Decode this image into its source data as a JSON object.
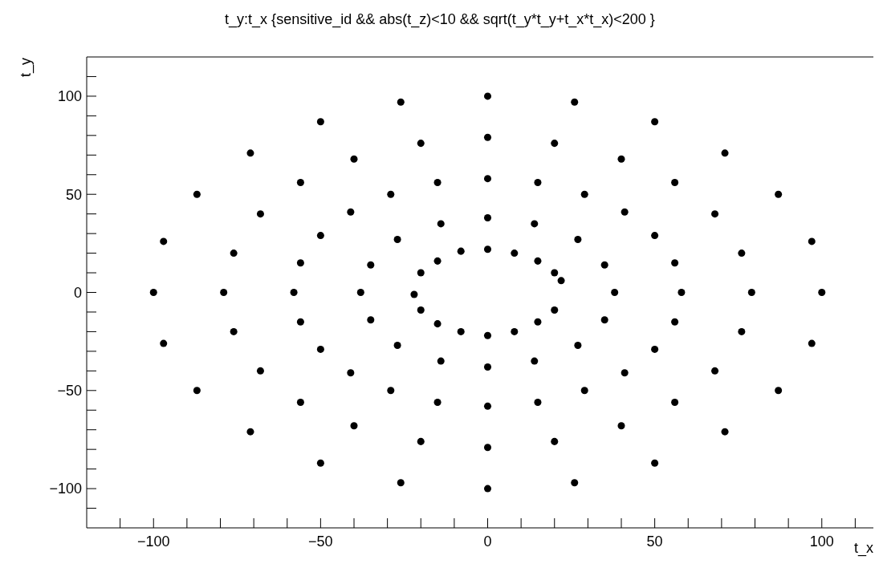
{
  "chart_data": {
    "type": "scatter",
    "title": "t_y:t_x {sensitive_id && abs(t_z)<10 && sqrt(t_y*t_y+t_x*t_x)<200 }",
    "xlabel": "t_x",
    "ylabel": "t_y",
    "xlim": [
      -120,
      120
    ],
    "ylim": [
      -120,
      120
    ],
    "xticks": [
      {
        "value": -110,
        "label": null
      },
      -100,
      {
        "value": -90,
        "label": null
      },
      {
        "value": -80,
        "label": null
      },
      {
        "value": -70,
        "label": null
      },
      {
        "value": -60,
        "label": null
      },
      -50,
      {
        "value": -40,
        "label": null
      },
      {
        "value": -30,
        "label": null
      },
      {
        "value": -20,
        "label": null
      },
      {
        "value": -10,
        "label": null
      },
      0,
      {
        "value": 10,
        "label": null
      },
      {
        "value": 20,
        "label": null
      },
      {
        "value": 30,
        "label": null
      },
      {
        "value": 40,
        "label": null
      },
      50,
      {
        "value": 60,
        "label": null
      },
      {
        "value": 70,
        "label": null
      },
      {
        "value": 80,
        "label": null
      },
      {
        "value": 90,
        "label": null
      },
      100,
      {
        "value": 110,
        "label": null
      }
    ],
    "yticks": [
      {
        "value": -110,
        "label": null
      },
      -100,
      {
        "value": -90,
        "label": null
      },
      {
        "value": -80,
        "label": null
      },
      {
        "value": -70,
        "label": null
      },
      {
        "value": -60,
        "label": null
      },
      -50,
      {
        "value": -40,
        "label": null
      },
      {
        "value": -30,
        "label": null
      },
      {
        "value": -20,
        "label": null
      },
      {
        "value": -10,
        "label": null
      },
      0,
      {
        "value": 10,
        "label": null
      },
      {
        "value": 20,
        "label": null
      },
      {
        "value": 30,
        "label": null
      },
      {
        "value": 40,
        "label": null
      },
      50,
      {
        "value": 60,
        "label": null
      },
      {
        "value": 70,
        "label": null
      },
      {
        "value": 80,
        "label": null
      },
      {
        "value": 90,
        "label": null
      },
      100,
      {
        "value": 110,
        "label": null
      }
    ],
    "marker": "circle",
    "legend": false,
    "grid": false,
    "series": [
      {
        "color": "#000000",
        "x": [
          22,
          20,
          15,
          8,
          0,
          -8,
          -15,
          -20,
          -22,
          -20,
          -15,
          -8,
          0,
          8,
          15,
          20
        ],
        "values": [
          6,
          10,
          16,
          20,
          22,
          21,
          16,
          10,
          -1,
          -9,
          -16,
          -20,
          -22,
          -20,
          -15,
          -9
        ]
      },
      {
        "color": "#000000",
        "x": [
          38,
          35,
          27,
          14,
          0,
          -14,
          -27,
          -35,
          -38,
          -35,
          -27,
          -14,
          0,
          14,
          27,
          35
        ],
        "values": [
          0,
          14,
          27,
          35,
          38,
          35,
          27,
          14,
          0,
          -14,
          -27,
          -35,
          -38,
          -35,
          -27,
          -14
        ]
      },
      {
        "color": "#000000",
        "x": [
          58,
          56,
          50,
          41,
          29,
          15,
          0,
          -15,
          -29,
          -41,
          -50,
          -56,
          -58,
          -56,
          -50,
          -41,
          -29,
          -15,
          0,
          15,
          29,
          41,
          50,
          56
        ],
        "values": [
          0,
          15,
          29,
          41,
          50,
          56,
          58,
          56,
          50,
          41,
          29,
          15,
          0,
          -15,
          -29,
          -41,
          -50,
          -56,
          -58,
          -56,
          -50,
          -41,
          -29,
          -15
        ]
      },
      {
        "color": "#000000",
        "x": [
          79,
          76,
          68,
          56,
          40,
          20,
          0,
          -20,
          -40,
          -56,
          -68,
          -76,
          -79,
          -76,
          -68,
          -56,
          -40,
          -20,
          0,
          20,
          40,
          56,
          68,
          76
        ],
        "values": [
          0,
          20,
          40,
          56,
          68,
          76,
          79,
          76,
          68,
          56,
          40,
          20,
          0,
          -20,
          -40,
          -56,
          -68,
          -76,
          -79,
          -76,
          -68,
          -56,
          -40,
          -20
        ]
      },
      {
        "color": "#000000",
        "x": [
          100,
          97,
          87,
          71,
          50,
          26,
          0,
          -26,
          -50,
          -71,
          -87,
          -97,
          -100,
          -97,
          -87,
          -71,
          -50,
          -26,
          0,
          26,
          50,
          71,
          87,
          97
        ],
        "values": [
          0,
          26,
          50,
          71,
          87,
          97,
          100,
          97,
          87,
          71,
          50,
          26,
          0,
          -26,
          -50,
          -71,
          -87,
          -97,
          -100,
          -97,
          -87,
          -71,
          -50,
          -26
        ]
      }
    ]
  }
}
